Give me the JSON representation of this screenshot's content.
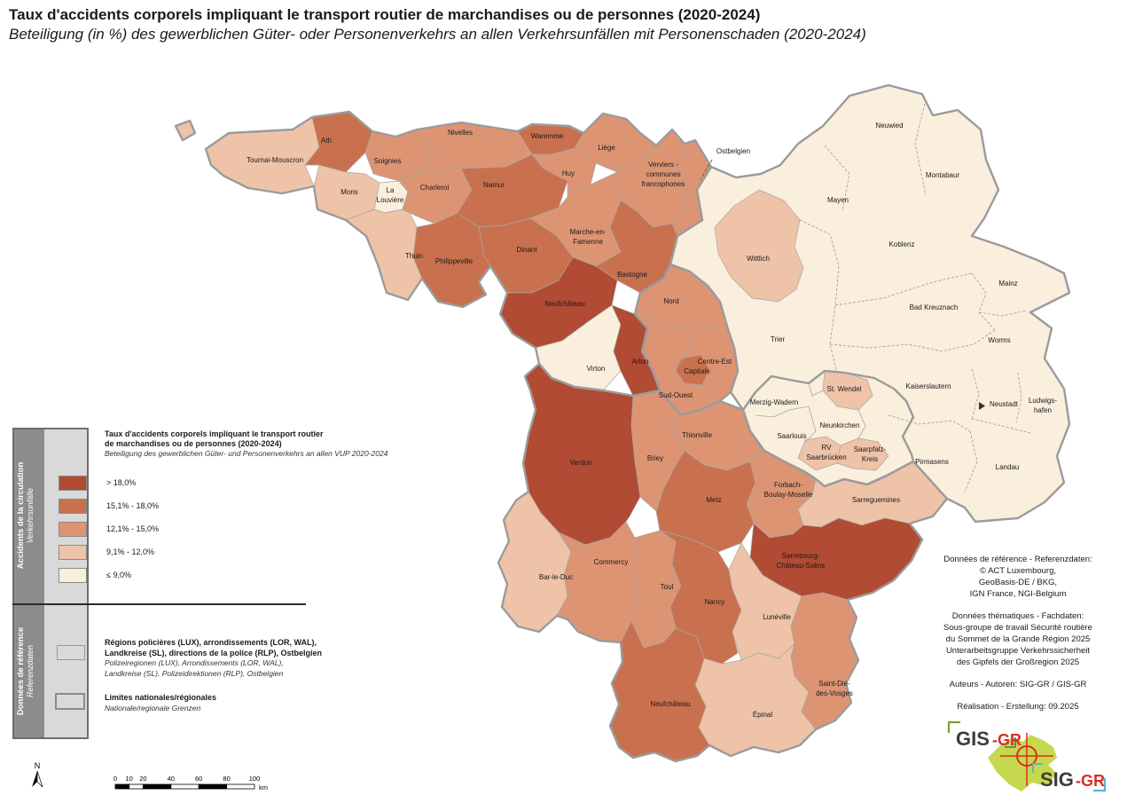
{
  "title": {
    "line1": "Taux d'accidents corporels impliquant le transport routier de marchandises ou de personnes (2020-2024)",
    "line2": "Beteiligung (in %) des gewerblichen Güter- oder Personenverkehrs an allen Verkehrsunfällen mit Personenschaden (2020-2024)"
  },
  "legend": {
    "section1_fr": "Accidents de la circulation",
    "section1_de": "Verkehrsunfälle",
    "section2_fr": "Données de référence",
    "section2_de": "Referenzdaten",
    "block_title_line1": "Taux d'accidents corporels impliquant le transport routier",
    "block_title_line2": "de marchandises ou de personnes (2020-2024)",
    "block_subtitle": "Beteiligung des gewerblichen Güter- und Personenverkehrs an allen VUP 2020-2024",
    "classes": [
      {
        "label": "> 18,0%",
        "color": "#b14b33"
      },
      {
        "label": "15,1% - 18,0%",
        "color": "#c9714e"
      },
      {
        "label": "12,1% - 15,0%",
        "color": "#dd9473"
      },
      {
        "label": "9,1% - 12,0%",
        "color": "#eec3a8"
      },
      {
        "label": "≤ 9,0%",
        "color": "#faeedd"
      }
    ],
    "ref1_title_line1": "Régions policières (LUX), arrondissements (LOR, WAL),",
    "ref1_title_line2": "Landkreise (SL), directions de la police (RLP), Ostbelgien",
    "ref1_sub_line1": "Polizeiregionen (LUX), Arrondissements (LOR, WAL),",
    "ref1_sub_line2": "Landkreise (SL), Polizeidirektionen (RLP), Ostbelgien",
    "ref2_title": "Limites nationales/régionales",
    "ref2_sub": "Nationale/regionale Grenzen"
  },
  "map": {
    "callout": {
      "label": "Ostbelgien"
    },
    "areas": [
      {
        "id": "rlp",
        "name": null,
        "cls": 4
      },
      {
        "id": "wittlich",
        "name": "Wittlich",
        "cls": 3
      },
      {
        "id": "saarland",
        "name": null,
        "cls": 4
      },
      {
        "id": "stwendel",
        "name": "St. Wendel",
        "cls": 3
      },
      {
        "id": "rvsb",
        "name": [
          "RV",
          "Saarbrücken"
        ],
        "cls": 3
      },
      {
        "id": "saarpfalz",
        "name": [
          "Saarpfalz-",
          "Kreis"
        ],
        "cls": 3
      },
      {
        "id": "luxembourg",
        "name": null,
        "cls": 2
      },
      {
        "id": "capitale",
        "name": "Capitale",
        "cls": 1
      },
      {
        "id": "tournai",
        "name": "Tournai-Mouscron",
        "cls": 3
      },
      {
        "id": "tournai_x",
        "name": null,
        "cls": 3
      },
      {
        "id": "ath",
        "name": "Ath",
        "cls": 1
      },
      {
        "id": "soignies",
        "name": "Soignies",
        "cls": 2
      },
      {
        "id": "mons",
        "name": "Mons",
        "cls": 3
      },
      {
        "id": "lalouviere",
        "name": [
          "La",
          "Louvière"
        ],
        "cls": 4
      },
      {
        "id": "charleroi",
        "name": "Charleroi",
        "cls": 2
      },
      {
        "id": "nivelles",
        "name": "Nivelles",
        "cls": 2
      },
      {
        "id": "thuin",
        "name": "Thuin",
        "cls": 3
      },
      {
        "id": "philippeville",
        "name": "Philippeville",
        "cls": 1
      },
      {
        "id": "namur",
        "name": "Namur",
        "cls": 1
      },
      {
        "id": "waremme",
        "name": "Waremme",
        "cls": 1
      },
      {
        "id": "huy",
        "name": "Huy",
        "cls": 2
      },
      {
        "id": "liege",
        "name": "Liège",
        "cls": 2
      },
      {
        "id": "verviers",
        "name": [
          "Verviers -",
          "communes",
          "francophones"
        ],
        "cls": 2
      },
      {
        "id": "ostbelgien_r",
        "name": null,
        "cls": 2
      },
      {
        "id": "marche",
        "name": [
          "Marche-en-",
          "Famenne"
        ],
        "cls": 2
      },
      {
        "id": "dinant",
        "name": "Dinant",
        "cls": 1
      },
      {
        "id": "bastogne",
        "name": "Bastogne",
        "cls": 1
      },
      {
        "id": "neufchateau_be",
        "name": "Neufchâteau",
        "cls": 0
      },
      {
        "id": "virton",
        "name": "Virton",
        "cls": 4
      },
      {
        "id": "arlon",
        "name": "Arlon",
        "cls": 0
      },
      {
        "id": "verdun",
        "name": "Verdun",
        "cls": 0
      },
      {
        "id": "briey",
        "name": "Briey",
        "cls": 2
      },
      {
        "id": "thionville",
        "name": "Thionville",
        "cls": 2
      },
      {
        "id": "metz",
        "name": "Metz",
        "cls": 1
      },
      {
        "id": "forbach",
        "name": [
          "Forbach-",
          "Boulay-Moselle"
        ],
        "cls": 2
      },
      {
        "id": "sarreguemines",
        "name": "Sarreguemines",
        "cls": 3
      },
      {
        "id": "sarrebourg",
        "name": [
          "Sarrebourg-",
          "Château-Salins"
        ],
        "cls": 0
      },
      {
        "id": "barleduc",
        "name": "Bar-le-Duc",
        "cls": 3
      },
      {
        "id": "commercy",
        "name": "Commercy",
        "cls": 2
      },
      {
        "id": "toul",
        "name": "Toul",
        "cls": 2
      },
      {
        "id": "nancy",
        "name": "Nancy",
        "cls": 1
      },
      {
        "id": "luneville",
        "name": "Lunéville",
        "cls": 3
      },
      {
        "id": "epinal",
        "name": "Épinal",
        "cls": 3
      },
      {
        "id": "stdie",
        "name": [
          "Saint-Dié-",
          "des-Vosges"
        ],
        "cls": 2
      },
      {
        "id": "neufchateau_fr",
        "name": "Neufchâteau",
        "cls": 1
      },
      {
        "id": "nord_lbl",
        "name": "Nord",
        "cls": null
      },
      {
        "id": "centreest_lbl",
        "name": "Centre-Est",
        "cls": null
      },
      {
        "id": "sudouest_lbl",
        "name": "Sud-Ouest",
        "cls": null
      },
      {
        "id": "merzig_lbl",
        "name": "Merzig-Wadern",
        "cls": null
      },
      {
        "id": "saarlouis_lbl",
        "name": "Saarlouis",
        "cls": null
      },
      {
        "id": "neunkirchen_lbl",
        "name": "Neunkirchen",
        "cls": null
      },
      {
        "id": "trier_lbl",
        "name": "Trier",
        "cls": null
      },
      {
        "id": "mayen_lbl",
        "name": "Mayen",
        "cls": null
      },
      {
        "id": "koblenz_lbl",
        "name": "Koblenz",
        "cls": null
      },
      {
        "id": "neuwied_lbl",
        "name": "Neuwied",
        "cls": null
      },
      {
        "id": "montabaur_lbl",
        "name": "Montabaur",
        "cls": null
      },
      {
        "id": "mainz_lbl",
        "name": "Mainz",
        "cls": null
      },
      {
        "id": "badkreuznach_lbl",
        "name": "Bad Kreuznach",
        "cls": null
      },
      {
        "id": "worms_lbl",
        "name": "Worms",
        "cls": null
      },
      {
        "id": "kaiserslautern_lbl",
        "name": "Kaiserslautern",
        "cls": null
      },
      {
        "id": "neustadt_lbl",
        "name": "Neustadt",
        "cls": null
      },
      {
        "id": "ludwigshafen_lbl",
        "name": [
          "Ludwigs-",
          "hafen"
        ],
        "cls": null
      },
      {
        "id": "pirmasens_lbl",
        "name": "Pirmasens",
        "cls": null
      },
      {
        "id": "landau_lbl",
        "name": "Landau",
        "cls": null
      }
    ]
  },
  "credits": {
    "g1": [
      "Données de référence - Referenzdaten:",
      "© ACT Luxembourg,",
      "GeoBasis-DE / BKG,",
      "IGN France, NGI-Belgium"
    ],
    "g2": [
      "Données thématiques - Fachdaten:",
      "Sous-groupe de travail Sécurité routière",
      "du Sommet de la Grande Région 2025",
      "Unterarbeitsgruppe Verkehrssicherheit",
      "des Gipfels der Großregion 2025"
    ],
    "g3": [
      "Auteurs - Autoren: SIG-GR / GIS-GR"
    ],
    "g4": [
      "Réalisation - Erstellung: 09.2025"
    ]
  },
  "scale": {
    "ticks": [
      "0",
      "10",
      "20",
      "40",
      "60",
      "80",
      "100"
    ],
    "unit": "km"
  },
  "north": "N",
  "logo": {
    "gis": "GIS",
    "sig": "SIG",
    "gr": "-GR",
    "accent_red": "#d62e2a",
    "green": "#c6d84d",
    "blue": "#5fb3c9"
  }
}
